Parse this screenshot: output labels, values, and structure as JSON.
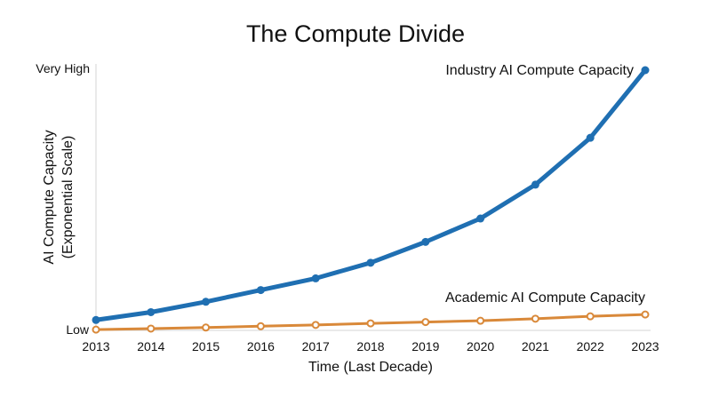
{
  "chart_data": {
    "type": "line",
    "title": "The Compute Divide",
    "xlabel": "Time (Last Decade)",
    "ylabel": [
      "AI Compute Capacity",
      "(Exponential Scale)"
    ],
    "x": [
      2013,
      2014,
      2015,
      2016,
      2017,
      2018,
      2019,
      2020,
      2021,
      2022,
      2023
    ],
    "y_ticks": {
      "high": "Very High",
      "low": "Low"
    },
    "ylim": [
      0,
      100
    ],
    "grid": false,
    "series": [
      {
        "name": "Industry AI Compute Capacity",
        "color": "#1f6fb2",
        "marker": "filled-circle",
        "values": [
          4,
          7,
          11,
          15.5,
          20,
          26,
          34,
          43,
          56,
          74,
          100
        ]
      },
      {
        "name": "Academic AI Compute Capacity",
        "color": "#d9893a",
        "marker": "hollow-circle",
        "values": [
          0.3,
          0.7,
          1.1,
          1.6,
          2.1,
          2.7,
          3.2,
          3.7,
          4.5,
          5.4,
          6.1
        ]
      }
    ]
  }
}
